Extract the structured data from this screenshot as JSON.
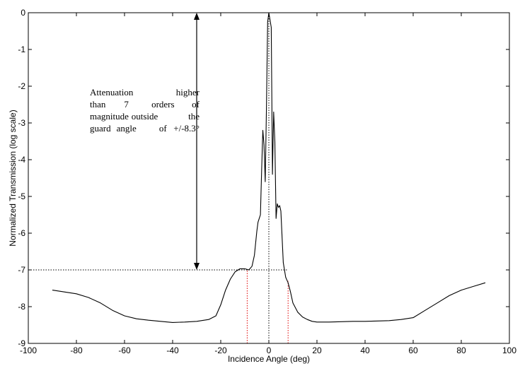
{
  "chart_data": {
    "type": "line",
    "title": "",
    "xlabel": "Incidence Angle (deg)",
    "ylabel": "Normalized Transmission (log scale)",
    "xlim": [
      -100,
      100
    ],
    "ylim": [
      -9,
      0
    ],
    "x_ticks": [
      -100,
      -80,
      -60,
      -40,
      -20,
      0,
      20,
      40,
      60,
      80,
      100
    ],
    "y_ticks": [
      0,
      -1,
      -2,
      -3,
      -4,
      -5,
      -6,
      -7,
      -8,
      -9
    ],
    "x_tick_labels": [
      "-100",
      "-80",
      "-60",
      "-40",
      "-20",
      "0",
      "20",
      "40",
      "60",
      "80",
      "100"
    ],
    "y_tick_labels": [
      "0",
      "-1",
      "-2",
      "-3",
      "-4",
      "-5",
      "-6",
      "-7",
      "-8",
      "-9"
    ],
    "grid": false,
    "series": [
      {
        "x": [
          -90,
          -85,
          -80,
          -75,
          -70,
          -65,
          -60,
          -55,
          -50,
          -45,
          -40,
          -35,
          -30,
          -25,
          -22,
          -20,
          -18,
          -16,
          -14,
          -12,
          -10,
          -8.3,
          -7,
          -6,
          -5,
          -4.5,
          -4,
          -3.5,
          -3,
          -2.5,
          -2,
          -1.5,
          -1,
          -0.5,
          0,
          0.5,
          1,
          1.5,
          2,
          2.5,
          3,
          3.5,
          4,
          4.5,
          5,
          6,
          7,
          8,
          9,
          10,
          12,
          14,
          16,
          18,
          20,
          25,
          30,
          35,
          40,
          45,
          50,
          55,
          60,
          65,
          70,
          75,
          80,
          85,
          90
        ],
        "y": [
          -7.55,
          -7.6,
          -7.65,
          -7.75,
          -7.9,
          -8.1,
          -8.25,
          -8.33,
          -8.37,
          -8.4,
          -8.43,
          -8.42,
          -8.4,
          -8.35,
          -8.25,
          -7.95,
          -7.55,
          -7.25,
          -7.05,
          -6.97,
          -6.97,
          -7.0,
          -6.9,
          -6.6,
          -5.95,
          -5.7,
          -5.6,
          -5.5,
          -4.3,
          -3.2,
          -3.6,
          -4.6,
          -2.6,
          -0.25,
          0.0,
          -0.2,
          -0.4,
          -4.4,
          -2.7,
          -3.5,
          -5.6,
          -5.2,
          -5.3,
          -5.25,
          -5.4,
          -6.8,
          -7.2,
          -7.35,
          -7.6,
          -7.9,
          -8.15,
          -8.28,
          -8.35,
          -8.4,
          -8.42,
          -8.42,
          -8.41,
          -8.4,
          -8.4,
          -8.39,
          -8.38,
          -8.35,
          -8.3,
          -8.1,
          -7.9,
          -7.7,
          -7.55,
          -7.45,
          -7.35
        ]
      }
    ],
    "reference_lines": [
      {
        "kind": "horizontal",
        "y": -7,
        "x_from": -100,
        "x_to": 8,
        "color": "#000000",
        "style": "dotted"
      },
      {
        "kind": "vertical",
        "x": 0,
        "y_from": -9,
        "y_to": 0,
        "color": "#000000",
        "style": "dotted"
      },
      {
        "kind": "vertical",
        "x": -9,
        "y_from": -9,
        "y_to": -7,
        "color": "#e00000",
        "style": "dotted"
      },
      {
        "kind": "vertical",
        "x": 8,
        "y_from": -9,
        "y_to": -7.3,
        "color": "#e00000",
        "style": "dotted"
      }
    ],
    "arrow": {
      "x": -30,
      "y_from": 0,
      "y_to": -7
    },
    "annotation": {
      "lines": [
        [
          "Attenuation",
          "higher"
        ],
        [
          "than",
          "7",
          "orders",
          "of"
        ],
        [
          "magnitude",
          "outside",
          "the"
        ],
        [
          "guard",
          "angle",
          "of",
          "+/-8.3°"
        ]
      ]
    }
  }
}
